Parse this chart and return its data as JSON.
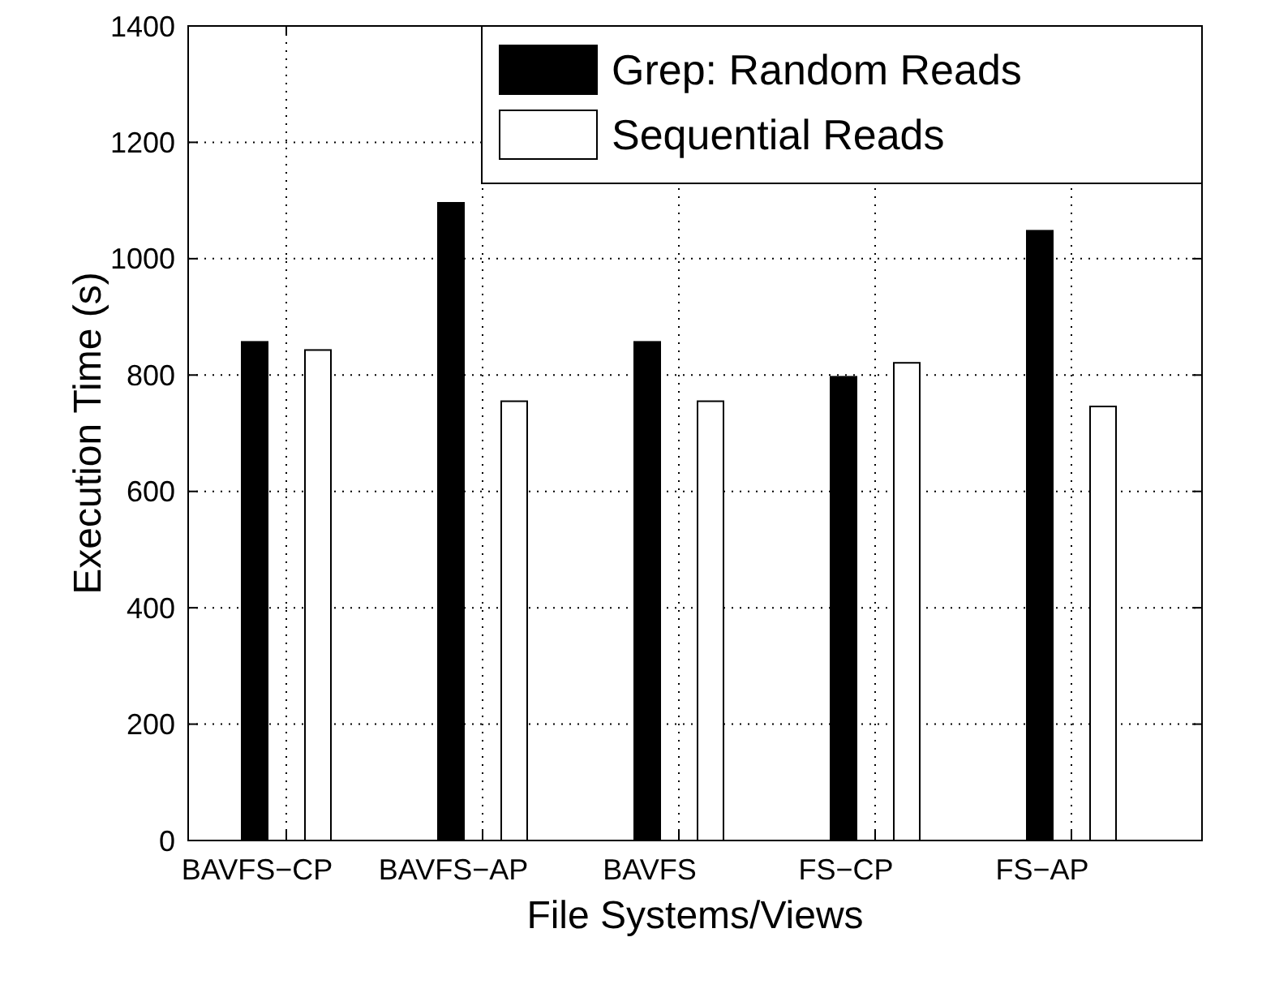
{
  "chart_data": {
    "type": "bar",
    "xlabel": "File Systems/Views",
    "ylabel": "Execution Time (s)",
    "categories": [
      "BAVFS−CP",
      "BAVFS−AP",
      "BAVFS",
      "FS−CP",
      "FS−AP"
    ],
    "series": [
      {
        "name": "Grep: Random Reads",
        "color": "#000000",
        "values": [
          857,
          1096,
          857,
          797,
          1048
        ]
      },
      {
        "name": "Sequential Reads",
        "color": "#ffffff",
        "values": [
          843,
          755,
          755,
          821,
          746
        ]
      }
    ],
    "ylim": [
      0,
      1400
    ],
    "yticks": [
      0,
      200,
      400,
      600,
      800,
      1000,
      1200,
      1400
    ],
    "grid": true,
    "legend": "top right"
  }
}
